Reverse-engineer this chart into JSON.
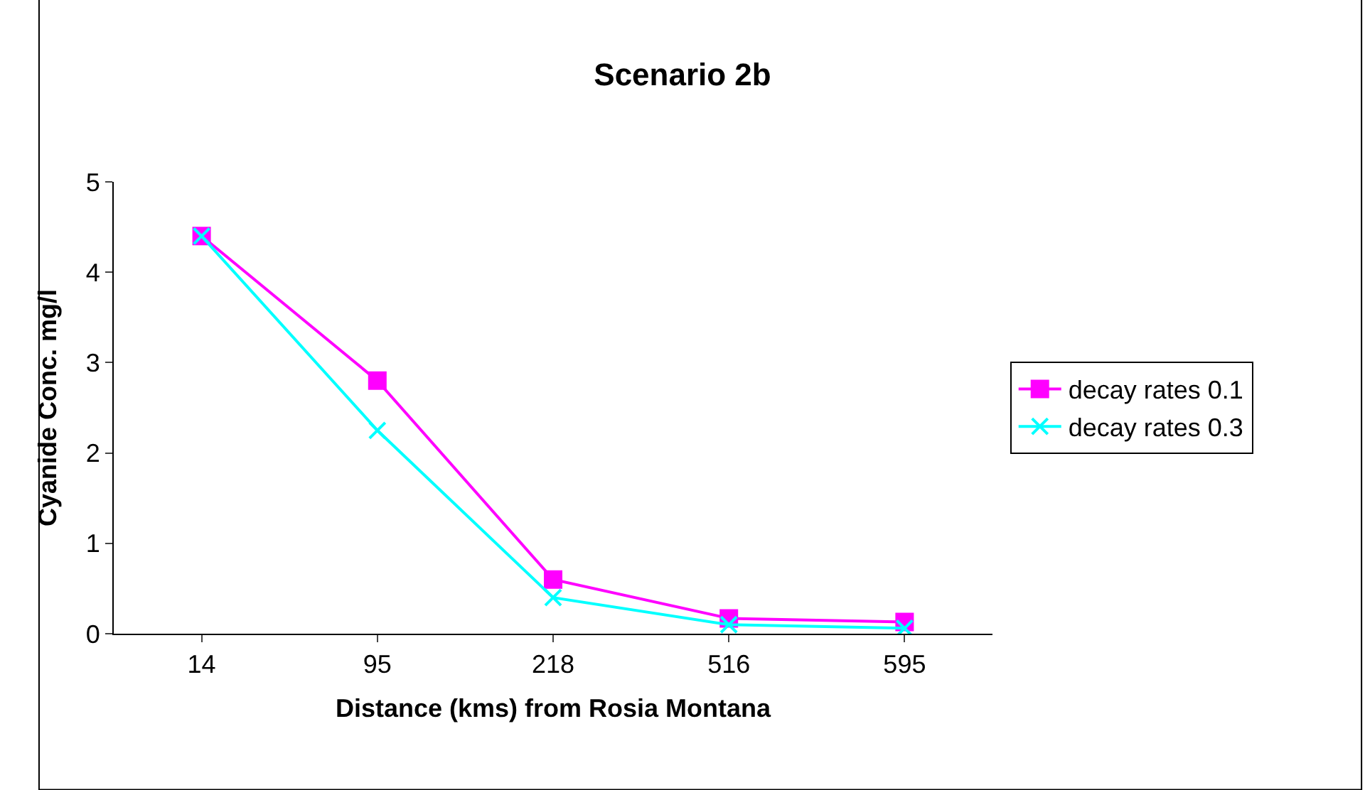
{
  "chart_data": {
    "type": "line",
    "title": "Scenario 2b",
    "xlabel": "Distance (kms) from Rosia Montana",
    "ylabel": "Cyanide Conc. mg/l",
    "categories": [
      "14",
      "95",
      "218",
      "516",
      "595"
    ],
    "series": [
      {
        "name": "decay rates 0.1",
        "color": "#ff00ff",
        "marker": "square",
        "values": [
          4.4,
          2.8,
          0.6,
          0.17,
          0.13
        ]
      },
      {
        "name": "decay rates 0.3",
        "color": "#00ffff",
        "marker": "cross",
        "values": [
          4.4,
          2.25,
          0.4,
          0.1,
          0.06
        ]
      }
    ],
    "ylim": [
      0,
      5
    ],
    "yticks": [
      0,
      1,
      2,
      3,
      4,
      5
    ],
    "grid": false,
    "legend": "right",
    "line_style": "solid"
  }
}
